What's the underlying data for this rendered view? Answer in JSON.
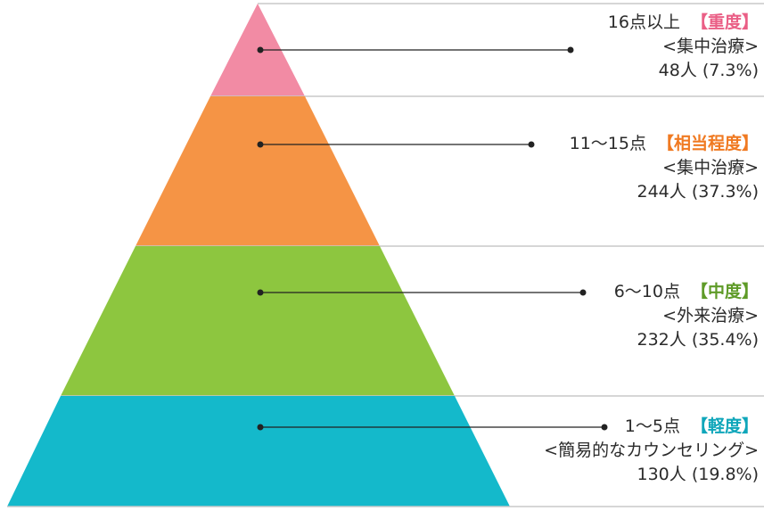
{
  "colors": {
    "severe": "#f28ba4",
    "fairly_severe": "#f59445",
    "moderate": "#8dc63f",
    "mild": "#14b9cb",
    "divider": "#c9c9c9",
    "leader": "#222222"
  },
  "tiers": [
    {
      "key": "severe",
      "score": "16点以上",
      "severity": "【重度】",
      "treatment": "<集中治療>",
      "count": "48人",
      "percent": "(7.3%)"
    },
    {
      "key": "fairly_severe",
      "score": "11〜15点",
      "severity": "【相当程度】",
      "treatment": "<集中治療>",
      "count": "244人",
      "percent": "(37.3%)"
    },
    {
      "key": "moderate",
      "score": "6〜10点",
      "severity": "【中度】",
      "treatment": "<外来治療>",
      "count": "232人",
      "percent": "(35.4%)"
    },
    {
      "key": "mild",
      "score": "1〜5点",
      "severity": "【軽度】",
      "treatment": "<簡易的なカウンセリング>",
      "count": "130人",
      "percent": "(19.8%)"
    }
  ]
}
